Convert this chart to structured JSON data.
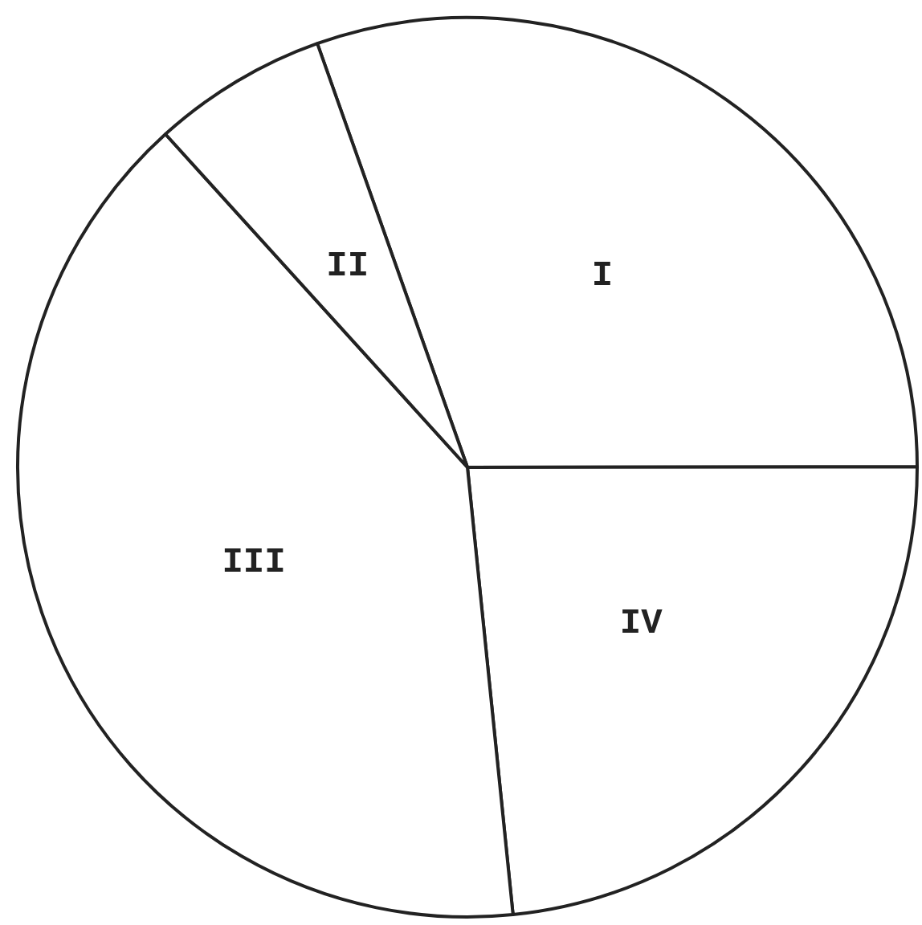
{
  "chart_data": {
    "type": "pie",
    "categories": [
      "I",
      "IV",
      "III",
      "II"
    ],
    "values": [
      30.4,
      23.4,
      39.9,
      6.3
    ],
    "colors": [
      "#ffffff",
      "#ffffff",
      "#ffffff",
      "#ffffff"
    ],
    "legend": false
  }
}
